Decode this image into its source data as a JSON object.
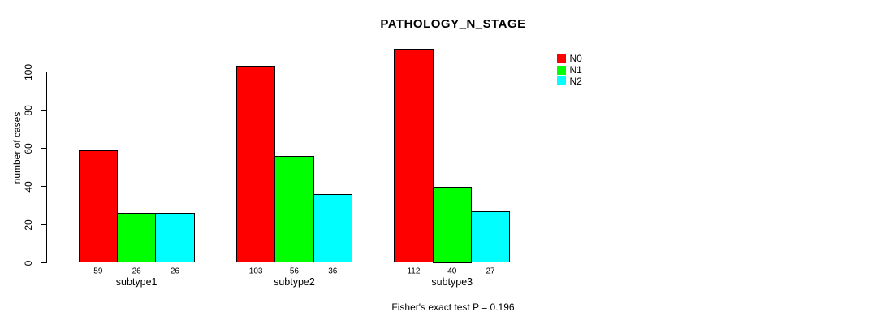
{
  "title": "PATHOLOGY_N_STAGE",
  "footer": "Fisher's exact test P = 0.196",
  "y_axis": {
    "label": "number of cases",
    "ticks": [
      0,
      20,
      40,
      60,
      80,
      100
    ]
  },
  "legend": {
    "items": [
      {
        "label": "N0",
        "color": "#FF0000"
      },
      {
        "label": "N1",
        "color": "#00FF00"
      },
      {
        "label": "N2",
        "color": "#00FFFF"
      }
    ]
  },
  "chart_data": {
    "type": "bar",
    "title": "PATHOLOGY_N_STAGE",
    "categories": [
      "subtype1",
      "subtype2",
      "subtype3"
    ],
    "series": [
      {
        "name": "N0",
        "color": "#FF0000",
        "values": [
          59,
          103,
          112
        ]
      },
      {
        "name": "N1",
        "color": "#00FF00",
        "values": [
          26,
          56,
          40
        ]
      },
      {
        "name": "N2",
        "color": "#00FFFF",
        "values": [
          26,
          36,
          27
        ]
      }
    ],
    "xlabel": "",
    "ylabel": "number of cases",
    "ylim": [
      0,
      100
    ],
    "yticks": [
      0,
      20,
      40,
      60,
      80,
      100
    ],
    "grid": false,
    "legend_position": "top-right",
    "bar_value_labels": true,
    "annotation": "Fisher's exact test P = 0.196"
  }
}
